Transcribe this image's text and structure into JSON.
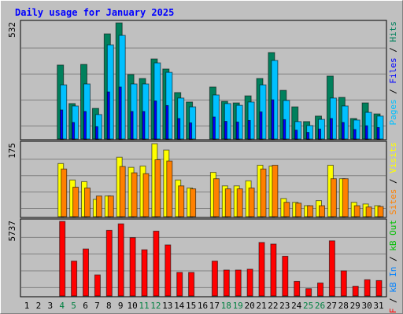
{
  "chart_data": [
    {
      "type": "bar",
      "title": "Daily usage for January 2025",
      "ylim": [
        0,
        532
      ],
      "yticks": [
        532
      ],
      "legend_separator": " / ",
      "series": [
        {
          "name": "Pages",
          "color": "#00c0ff",
          "values": [
            null,
            null,
            null,
            246,
            150,
            250,
            111,
            428,
            471,
            250,
            250,
            346,
            303,
            186,
            146,
            null,
            200,
            161,
            153,
            168,
            246,
            357,
            175,
            79,
            61,
            89,
            186,
            150,
            86,
            121,
            104
          ]
        },
        {
          "name": "Files",
          "color": "#0000ff",
          "values": [
            null,
            null,
            null,
            132,
            75,
            125,
            56,
            214,
            236,
            125,
            125,
            173,
            152,
            93,
            73,
            null,
            100,
            80,
            77,
            84,
            123,
            178,
            88,
            40,
            30,
            45,
            93,
            75,
            43,
            60,
            52
          ]
        },
        {
          "name": "Hits",
          "color": "#00805c",
          "values": [
            null,
            null,
            null,
            336,
            161,
            339,
            139,
            478,
            528,
            293,
            275,
            364,
            318,
            211,
            168,
            null,
            236,
            171,
            164,
            196,
            275,
            393,
            221,
            146,
            79,
            104,
            286,
            189,
            93,
            164,
            114
          ]
        }
      ]
    },
    {
      "type": "bar",
      "ylim": [
        0,
        175
      ],
      "yticks": [
        175
      ],
      "legend_separator": " / ",
      "series": [
        {
          "name": "Sites",
          "color": "#ff8000",
          "values": [
            null,
            null,
            null,
            113,
            70,
            68,
            49,
            49,
            119,
            104,
            102,
            135,
            132,
            73,
            66,
            null,
            90,
            66,
            66,
            68,
            113,
            122,
            34,
            32,
            26,
            26,
            90,
            90,
            26,
            23,
            24
          ]
        },
        {
          "name": "Visits",
          "color": "#ffff00",
          "values": [
            null,
            null,
            null,
            126,
            87,
            83,
            41,
            49,
            141,
            117,
            120,
            173,
            158,
            87,
            68,
            null,
            105,
            73,
            73,
            85,
            122,
            120,
            43,
            34,
            26,
            38,
            122,
            90,
            34,
            30,
            26
          ]
        }
      ]
    },
    {
      "type": "bar",
      "ylim": [
        0,
        5737
      ],
      "yticks": [
        5737
      ],
      "legend_separator": " / ",
      "categories": [
        1,
        2,
        3,
        4,
        5,
        6,
        7,
        8,
        9,
        10,
        11,
        12,
        13,
        14,
        15,
        16,
        17,
        18,
        19,
        20,
        21,
        22,
        23,
        24,
        25,
        26,
        27,
        28,
        29,
        30,
        31
      ],
      "category_colors": [
        "#000000",
        "#000000",
        "#000000",
        "#008040",
        "#008040",
        "#000000",
        "#000000",
        "#000000",
        "#000000",
        "#000000",
        "#008040",
        "#008040",
        "#000000",
        "#000000",
        "#000000",
        "#000000",
        "#000000",
        "#008040",
        "#008040",
        "#000000",
        "#000000",
        "#000000",
        "#000000",
        "#000000",
        "#008040",
        "#008040",
        "#000000",
        "#000000",
        "#000000",
        "#000000",
        "#000000"
      ],
      "series": [
        {
          "name": "kB F",
          "color": "#ff0000",
          "values": [
            null,
            null,
            null,
            5675,
            2653,
            3578,
            1604,
            4997,
            5490,
            4441,
            3516,
            4935,
            3886,
            1789,
            1789,
            null,
            2653,
            1974,
            1974,
            2036,
            4071,
            3948,
            3023,
            1110,
            555,
            987,
            4195,
            1912,
            740,
            1234,
            1172
          ]
        },
        {
          "name": "kB In",
          "color": "#0080ff"
        },
        {
          "name": "kB Out",
          "color": "#00c000"
        }
      ]
    }
  ]
}
